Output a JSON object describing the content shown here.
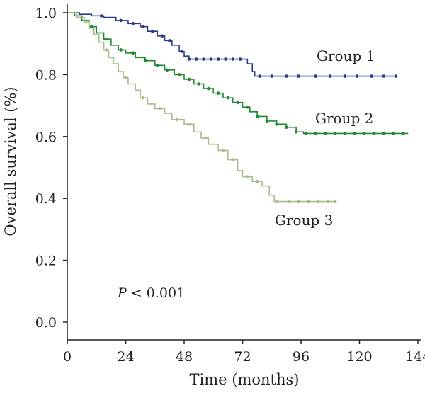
{
  "chart_data": {
    "type": "line",
    "subtype": "kaplan-meier step curves with censor marks",
    "xlabel": "Time (months)",
    "ylabel": "Overall survival (%)",
    "xlim": [
      0,
      144
    ],
    "ylim": [
      0.0,
      1.0
    ],
    "xticks": [
      "0",
      "24",
      "48",
      "72",
      "96",
      "120",
      "144"
    ],
    "yticks": [
      "0.0",
      "0.2",
      "0.4",
      "0.6",
      "0.8",
      "1.0"
    ],
    "grid": false,
    "annotation": {
      "prefix": "P",
      "text": " < 0.001"
    },
    "series": [
      {
        "name": "Group 1",
        "color": "#2b3a8c",
        "steps": [
          [
            0,
            1.0
          ],
          [
            5,
            0.995
          ],
          [
            10,
            0.99
          ],
          [
            15,
            0.985
          ],
          [
            20,
            0.975
          ],
          [
            25,
            0.965
          ],
          [
            30,
            0.955
          ],
          [
            33,
            0.94
          ],
          [
            37,
            0.925
          ],
          [
            40,
            0.91
          ],
          [
            43,
            0.895
          ],
          [
            46,
            0.875
          ],
          [
            48,
            0.86
          ],
          [
            50,
            0.85
          ],
          [
            74,
            0.835
          ],
          [
            76,
            0.81
          ],
          [
            77,
            0.795
          ],
          [
            135,
            0.795
          ]
        ],
        "censors": [
          14,
          22,
          27,
          31,
          35,
          39,
          42,
          47,
          50,
          53,
          56,
          59,
          62,
          65,
          68,
          71,
          79,
          84,
          90,
          95,
          102,
          108,
          114,
          119,
          125,
          130,
          135
        ]
      },
      {
        "name": "Group 2",
        "color": "#1f8a2e",
        "steps": [
          [
            0,
            1.0
          ],
          [
            3,
            0.99
          ],
          [
            6,
            0.975
          ],
          [
            9,
            0.955
          ],
          [
            12,
            0.935
          ],
          [
            15,
            0.915
          ],
          [
            18,
            0.895
          ],
          [
            21,
            0.88
          ],
          [
            24,
            0.87
          ],
          [
            28,
            0.855
          ],
          [
            32,
            0.845
          ],
          [
            36,
            0.83
          ],
          [
            40,
            0.815
          ],
          [
            44,
            0.8
          ],
          [
            48,
            0.785
          ],
          [
            52,
            0.77
          ],
          [
            56,
            0.755
          ],
          [
            60,
            0.74
          ],
          [
            64,
            0.725
          ],
          [
            68,
            0.71
          ],
          [
            72,
            0.695
          ],
          [
            75,
            0.68
          ],
          [
            78,
            0.665
          ],
          [
            82,
            0.65
          ],
          [
            86,
            0.64
          ],
          [
            90,
            0.63
          ],
          [
            94,
            0.615
          ],
          [
            97,
            0.61
          ],
          [
            140,
            0.61
          ]
        ],
        "censors": [
          10,
          16,
          22,
          27,
          32,
          37,
          41,
          46,
          50,
          54,
          58,
          62,
          66,
          70,
          74,
          78,
          82,
          86,
          90,
          94,
          98,
          102,
          106,
          110,
          114,
          118,
          122,
          126,
          130,
          134,
          138
        ]
      },
      {
        "name": "Group 3",
        "color": "#a8be8a",
        "steps": [
          [
            0,
            1.0
          ],
          [
            4,
            0.985
          ],
          [
            7,
            0.97
          ],
          [
            9,
            0.95
          ],
          [
            11,
            0.93
          ],
          [
            13,
            0.905
          ],
          [
            15,
            0.88
          ],
          [
            17,
            0.855
          ],
          [
            19,
            0.835
          ],
          [
            21,
            0.81
          ],
          [
            23,
            0.79
          ],
          [
            25,
            0.77
          ],
          [
            28,
            0.75
          ],
          [
            30,
            0.725
          ],
          [
            33,
            0.705
          ],
          [
            36,
            0.69
          ],
          [
            40,
            0.675
          ],
          [
            43,
            0.655
          ],
          [
            48,
            0.64
          ],
          [
            52,
            0.615
          ],
          [
            55,
            0.595
          ],
          [
            58,
            0.575
          ],
          [
            62,
            0.555
          ],
          [
            66,
            0.525
          ],
          [
            70,
            0.49
          ],
          [
            72,
            0.47
          ],
          [
            76,
            0.455
          ],
          [
            80,
            0.44
          ],
          [
            83,
            0.41
          ],
          [
            85,
            0.39
          ],
          [
            110,
            0.39
          ]
        ],
        "censors": [
          16,
          24,
          31,
          38,
          45,
          50,
          57,
          64,
          68,
          74,
          78,
          86,
          91,
          95,
          99,
          103,
          107,
          110
        ]
      }
    ]
  }
}
